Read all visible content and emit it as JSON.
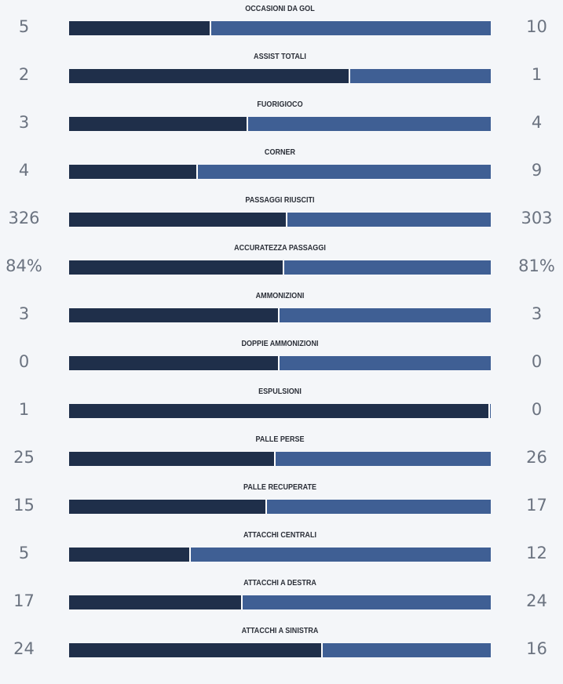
{
  "colors": {
    "home_bar": "#1f2f4a",
    "away_bar": "#3f5f94",
    "background": "#f4f6f9",
    "value_text": "#6b7380",
    "label_text": "#2b2f38"
  },
  "stats": [
    {
      "label": "OCCASIONI DA GOL",
      "home": "5",
      "away": "10",
      "home_share": 0.333
    },
    {
      "label": "ASSIST TOTALI",
      "home": "2",
      "away": "1",
      "home_share": 0.663
    },
    {
      "label": "FUORIGIOCO",
      "home": "3",
      "away": "4",
      "home_share": 0.42
    },
    {
      "label": "CORNER",
      "home": "4",
      "away": "9",
      "home_share": 0.302
    },
    {
      "label": "PASSAGGI RIUSCITI",
      "home": "326",
      "away": "303",
      "home_share": 0.514
    },
    {
      "label": "ACCURATEZZA PASSAGGI",
      "home": "84%",
      "away": "81%",
      "home_share": 0.506
    },
    {
      "label": "AMMONIZIONI",
      "home": "3",
      "away": "3",
      "home_share": 0.495
    },
    {
      "label": "DOPPIE AMMONIZIONI",
      "home": "0",
      "away": "0",
      "home_share": 0.495
    },
    {
      "label": "ESPULSIONI",
      "home": "1",
      "away": "0",
      "home_share": 0.995
    },
    {
      "label": "PALLE PERSE",
      "home": "25",
      "away": "26",
      "home_share": 0.486
    },
    {
      "label": "PALLE RECUPERATE",
      "home": "15",
      "away": "17",
      "home_share": 0.465
    },
    {
      "label": "ATTACCHI CENTRALI",
      "home": "5",
      "away": "12",
      "home_share": 0.285
    },
    {
      "label": "ATTACCHI A DESTRA",
      "home": "17",
      "away": "24",
      "home_share": 0.408
    },
    {
      "label": "ATTACCHI A SINISTRA",
      "home": "24",
      "away": "16",
      "home_share": 0.597
    }
  ]
}
